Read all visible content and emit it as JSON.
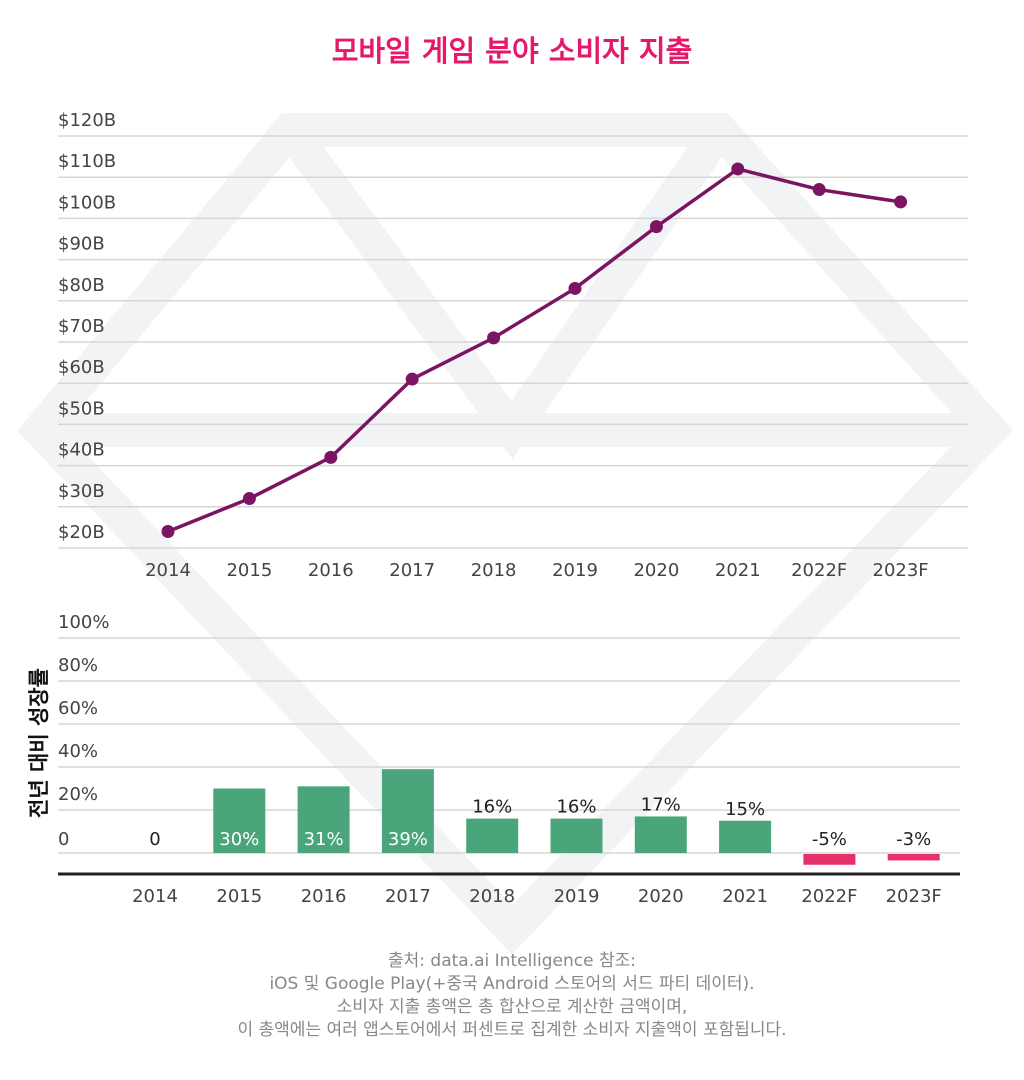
{
  "title": "모바일 게임 분야 소비자 지출",
  "colors": {
    "title": "#e6186b",
    "line": "#7a1463",
    "positive_bar": "#4aa67a",
    "negative_bar": "#e6306a",
    "grid": "#d6d6d6"
  },
  "chart_data": [
    {
      "type": "line",
      "categories": [
        "2014",
        "2015",
        "2016",
        "2017",
        "2018",
        "2019",
        "2020",
        "2021",
        "2022F",
        "2023F"
      ],
      "values": [
        24,
        32,
        42,
        61,
        71,
        83,
        98,
        112,
        107,
        104
      ],
      "y_ticks": [
        "$20B",
        "$30B",
        "$40B",
        "$50B",
        "$60B",
        "$70B",
        "$80B",
        "$90B",
        "$100B",
        "$110B",
        "$120B"
      ],
      "ylim": [
        20,
        120
      ],
      "unit": "billion USD",
      "grid": true
    },
    {
      "type": "bar",
      "ylabel": "전년 대비 성장률",
      "categories": [
        "2014",
        "2015",
        "2016",
        "2017",
        "2018",
        "2019",
        "2020",
        "2021",
        "2022F",
        "2023F"
      ],
      "values": [
        0,
        30,
        31,
        39,
        16,
        16,
        17,
        15,
        -5,
        -3
      ],
      "data_labels": [
        "0",
        "30%",
        "31%",
        "39%",
        "16%",
        "16%",
        "17%",
        "15%",
        "-5%",
        "-3%"
      ],
      "y_ticks": [
        "0",
        "20%",
        "40%",
        "60%",
        "80%",
        "100%"
      ],
      "ylim": [
        0,
        100
      ],
      "grid": true
    }
  ],
  "source_lines": [
    "출처: data.ai Intelligence 참조:",
    "iOS 및 Google Play(+중국 Android 스토어의 서드 파티 데이터).",
    "소비자 지출 총액은 총 합산으로 계산한 금액이며,",
    "이 총액에는 여러 앱스토어에서 퍼센트로 집계한 소비자 지출액이 포함됩니다."
  ]
}
